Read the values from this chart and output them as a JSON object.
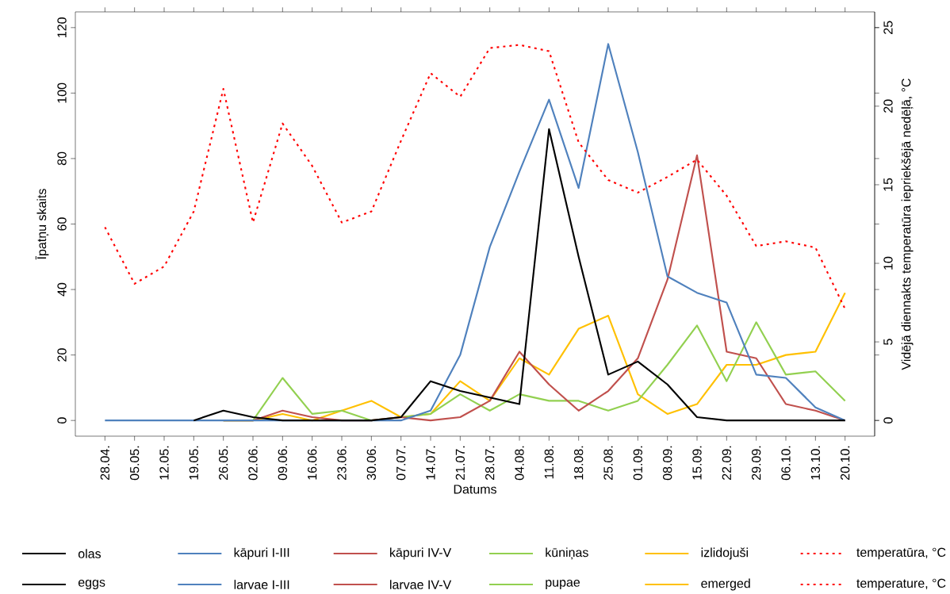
{
  "chart_data": {
    "type": "line",
    "categories": [
      "28.04.",
      "05.05.",
      "12.05.",
      "19.05.",
      "26.05.",
      "02.06.",
      "09.06.",
      "16.06.",
      "23.06.",
      "30.06.",
      "07.07.",
      "14.07.",
      "21.07.",
      "28.07.",
      "04.08.",
      "11.08.",
      "18.08.",
      "25.08.",
      "01.09.",
      "08.09.",
      "15.09.",
      "22.09.",
      "29.09.",
      "06.10.",
      "13.10.",
      "20.10."
    ],
    "series": [
      {
        "name": "olas",
        "color": "#000000",
        "line_style": "solid",
        "values": [
          null,
          null,
          null,
          0,
          3,
          1,
          0,
          0,
          0,
          0,
          1,
          12,
          9,
          7,
          5,
          89,
          50,
          14,
          18,
          11,
          1,
          0,
          0,
          0,
          0,
          0
        ]
      },
      {
        "name": "kāpuri I-III",
        "color": "#4f81bd",
        "line_style": "solid",
        "values": [
          0,
          0,
          0,
          0,
          0,
          0,
          0,
          0,
          0,
          0,
          0,
          3,
          20,
          53,
          76,
          98,
          71,
          115,
          82,
          44,
          39,
          36,
          14,
          13,
          4,
          0
        ]
      },
      {
        "name": "kāpuri IV-V",
        "color": "#c0504d",
        "line_style": "solid",
        "values": [
          null,
          null,
          null,
          null,
          0,
          0,
          3,
          1,
          0,
          0,
          1,
          0,
          1,
          6,
          21,
          11,
          3,
          9,
          19,
          43,
          81,
          21,
          19,
          5,
          3,
          0
        ]
      },
      {
        "name": "kūniņas",
        "color": "#92d050",
        "line_style": "solid",
        "values": [
          null,
          null,
          null,
          null,
          0,
          0,
          13,
          2,
          3,
          0,
          1,
          2,
          8,
          3,
          8,
          6,
          6,
          3,
          6,
          17,
          29,
          12,
          30,
          14,
          15,
          6
        ]
      },
      {
        "name": "izlidojuši",
        "color": "#ffc000",
        "line_style": "solid",
        "values": [
          null,
          null,
          null,
          null,
          0,
          0,
          2,
          0,
          3,
          6,
          1,
          2,
          12,
          6,
          19,
          14,
          28,
          32,
          8,
          2,
          5,
          17,
          17,
          20,
          21,
          39
        ]
      },
      {
        "name": "temperatūra, °C",
        "color": "#ff0000",
        "line_style": "dotted",
        "axis": "y2",
        "values": [
          12.3,
          8.7,
          9.8,
          13.3,
          21.1,
          12.6,
          18.9,
          16.2,
          12.6,
          13.3,
          17.8,
          22.1,
          20.6,
          23.7,
          23.9,
          23.5,
          17.7,
          15.3,
          14.5,
          15.5,
          16.6,
          14.3,
          11.1,
          11.4,
          11.0,
          7.1
        ]
      }
    ],
    "annotations": [
      "eggs",
      "larvae I-III",
      "larvae IV-V",
      "pupae",
      "emerged",
      "temperature, °C"
    ],
    "xlabel": "Datums",
    "ylabel": "Īpatņu skaits",
    "y2label": "Vidējā diennakts temperatūra iepriekšējā nedēļā, °C",
    "ylim": [
      -4.8,
      124.8
    ],
    "yticks": [
      0,
      20,
      40,
      60,
      80,
      100,
      120
    ],
    "y2lim": [
      -1,
      26
    ],
    "y2ticks": [
      0,
      5,
      10,
      15,
      20,
      25
    ],
    "grid": false,
    "legend": "bottom"
  }
}
